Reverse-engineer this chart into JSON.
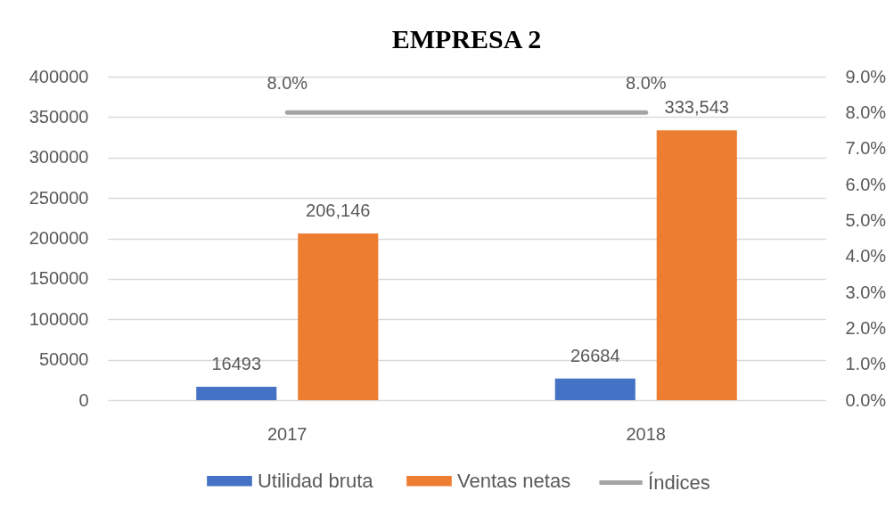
{
  "chart_data": {
    "type": "bar",
    "title": "EMPRESA 2",
    "categories": [
      "2017",
      "2018"
    ],
    "series": [
      {
        "name": "Utilidad bruta",
        "color": "#4472c4",
        "values": [
          16493,
          26684
        ],
        "value_labels": [
          "16493",
          "26684"
        ]
      },
      {
        "name": "Ventas netas",
        "color": "#ed7d31",
        "values": [
          206146,
          333543
        ],
        "value_labels": [
          "206,146",
          "333,543"
        ]
      },
      {
        "name": "Índices",
        "type": "line",
        "axis": "y2",
        "color": "#a5a5a5",
        "values": [
          8.0,
          8.0
        ],
        "value_labels": [
          "8.0%",
          "8.0%"
        ]
      }
    ],
    "ylim": [
      0,
      400000
    ],
    "yticks": [
      0,
      50000,
      100000,
      150000,
      200000,
      250000,
      300000,
      350000,
      400000
    ],
    "y2lim": [
      0,
      9
    ],
    "y2ticks": [
      {
        "value": 0,
        "label": "0.0%"
      },
      {
        "value": 1,
        "label": "1.0%"
      },
      {
        "value": 2,
        "label": "2.0%"
      },
      {
        "value": 3,
        "label": "3.0%"
      },
      {
        "value": 4,
        "label": "4.0%"
      },
      {
        "value": 5,
        "label": "5.0%"
      },
      {
        "value": 6,
        "label": "6.0%"
      },
      {
        "value": 7,
        "label": "7.0%"
      },
      {
        "value": 8,
        "label": "8.0%"
      },
      {
        "value": 9,
        "label": "9.0%"
      }
    ],
    "grid": "y",
    "legend": "bottom"
  }
}
